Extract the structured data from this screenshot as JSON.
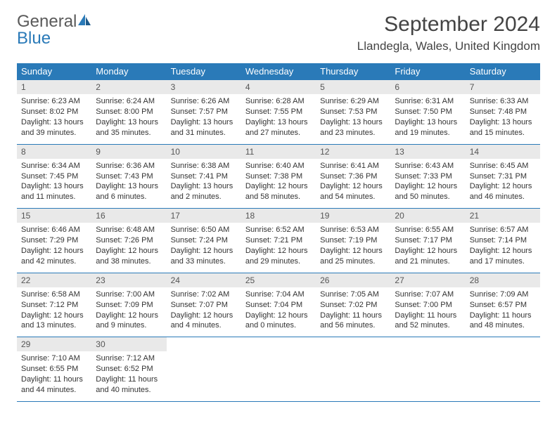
{
  "logo": {
    "general": "General",
    "blue": "Blue"
  },
  "title": "September 2024",
  "location": "Llandegla, Wales, United Kingdom",
  "colors": {
    "header_bg": "#2a7ab8",
    "header_text": "#ffffff",
    "daynum_bg": "#e9e9e9",
    "border": "#2a7ab8",
    "body_text": "#333333",
    "logo_gray": "#5a5a5a",
    "logo_blue": "#2a7ab8"
  },
  "weekdays": [
    "Sunday",
    "Monday",
    "Tuesday",
    "Wednesday",
    "Thursday",
    "Friday",
    "Saturday"
  ],
  "weeks": [
    [
      {
        "n": "1",
        "sr": "Sunrise: 6:23 AM",
        "ss": "Sunset: 8:02 PM",
        "d1": "Daylight: 13 hours",
        "d2": "and 39 minutes."
      },
      {
        "n": "2",
        "sr": "Sunrise: 6:24 AM",
        "ss": "Sunset: 8:00 PM",
        "d1": "Daylight: 13 hours",
        "d2": "and 35 minutes."
      },
      {
        "n": "3",
        "sr": "Sunrise: 6:26 AM",
        "ss": "Sunset: 7:57 PM",
        "d1": "Daylight: 13 hours",
        "d2": "and 31 minutes."
      },
      {
        "n": "4",
        "sr": "Sunrise: 6:28 AM",
        "ss": "Sunset: 7:55 PM",
        "d1": "Daylight: 13 hours",
        "d2": "and 27 minutes."
      },
      {
        "n": "5",
        "sr": "Sunrise: 6:29 AM",
        "ss": "Sunset: 7:53 PM",
        "d1": "Daylight: 13 hours",
        "d2": "and 23 minutes."
      },
      {
        "n": "6",
        "sr": "Sunrise: 6:31 AM",
        "ss": "Sunset: 7:50 PM",
        "d1": "Daylight: 13 hours",
        "d2": "and 19 minutes."
      },
      {
        "n": "7",
        "sr": "Sunrise: 6:33 AM",
        "ss": "Sunset: 7:48 PM",
        "d1": "Daylight: 13 hours",
        "d2": "and 15 minutes."
      }
    ],
    [
      {
        "n": "8",
        "sr": "Sunrise: 6:34 AM",
        "ss": "Sunset: 7:45 PM",
        "d1": "Daylight: 13 hours",
        "d2": "and 11 minutes."
      },
      {
        "n": "9",
        "sr": "Sunrise: 6:36 AM",
        "ss": "Sunset: 7:43 PM",
        "d1": "Daylight: 13 hours",
        "d2": "and 6 minutes."
      },
      {
        "n": "10",
        "sr": "Sunrise: 6:38 AM",
        "ss": "Sunset: 7:41 PM",
        "d1": "Daylight: 13 hours",
        "d2": "and 2 minutes."
      },
      {
        "n": "11",
        "sr": "Sunrise: 6:40 AM",
        "ss": "Sunset: 7:38 PM",
        "d1": "Daylight: 12 hours",
        "d2": "and 58 minutes."
      },
      {
        "n": "12",
        "sr": "Sunrise: 6:41 AM",
        "ss": "Sunset: 7:36 PM",
        "d1": "Daylight: 12 hours",
        "d2": "and 54 minutes."
      },
      {
        "n": "13",
        "sr": "Sunrise: 6:43 AM",
        "ss": "Sunset: 7:33 PM",
        "d1": "Daylight: 12 hours",
        "d2": "and 50 minutes."
      },
      {
        "n": "14",
        "sr": "Sunrise: 6:45 AM",
        "ss": "Sunset: 7:31 PM",
        "d1": "Daylight: 12 hours",
        "d2": "and 46 minutes."
      }
    ],
    [
      {
        "n": "15",
        "sr": "Sunrise: 6:46 AM",
        "ss": "Sunset: 7:29 PM",
        "d1": "Daylight: 12 hours",
        "d2": "and 42 minutes."
      },
      {
        "n": "16",
        "sr": "Sunrise: 6:48 AM",
        "ss": "Sunset: 7:26 PM",
        "d1": "Daylight: 12 hours",
        "d2": "and 38 minutes."
      },
      {
        "n": "17",
        "sr": "Sunrise: 6:50 AM",
        "ss": "Sunset: 7:24 PM",
        "d1": "Daylight: 12 hours",
        "d2": "and 33 minutes."
      },
      {
        "n": "18",
        "sr": "Sunrise: 6:52 AM",
        "ss": "Sunset: 7:21 PM",
        "d1": "Daylight: 12 hours",
        "d2": "and 29 minutes."
      },
      {
        "n": "19",
        "sr": "Sunrise: 6:53 AM",
        "ss": "Sunset: 7:19 PM",
        "d1": "Daylight: 12 hours",
        "d2": "and 25 minutes."
      },
      {
        "n": "20",
        "sr": "Sunrise: 6:55 AM",
        "ss": "Sunset: 7:17 PM",
        "d1": "Daylight: 12 hours",
        "d2": "and 21 minutes."
      },
      {
        "n": "21",
        "sr": "Sunrise: 6:57 AM",
        "ss": "Sunset: 7:14 PM",
        "d1": "Daylight: 12 hours",
        "d2": "and 17 minutes."
      }
    ],
    [
      {
        "n": "22",
        "sr": "Sunrise: 6:58 AM",
        "ss": "Sunset: 7:12 PM",
        "d1": "Daylight: 12 hours",
        "d2": "and 13 minutes."
      },
      {
        "n": "23",
        "sr": "Sunrise: 7:00 AM",
        "ss": "Sunset: 7:09 PM",
        "d1": "Daylight: 12 hours",
        "d2": "and 9 minutes."
      },
      {
        "n": "24",
        "sr": "Sunrise: 7:02 AM",
        "ss": "Sunset: 7:07 PM",
        "d1": "Daylight: 12 hours",
        "d2": "and 4 minutes."
      },
      {
        "n": "25",
        "sr": "Sunrise: 7:04 AM",
        "ss": "Sunset: 7:04 PM",
        "d1": "Daylight: 12 hours",
        "d2": "and 0 minutes."
      },
      {
        "n": "26",
        "sr": "Sunrise: 7:05 AM",
        "ss": "Sunset: 7:02 PM",
        "d1": "Daylight: 11 hours",
        "d2": "and 56 minutes."
      },
      {
        "n": "27",
        "sr": "Sunrise: 7:07 AM",
        "ss": "Sunset: 7:00 PM",
        "d1": "Daylight: 11 hours",
        "d2": "and 52 minutes."
      },
      {
        "n": "28",
        "sr": "Sunrise: 7:09 AM",
        "ss": "Sunset: 6:57 PM",
        "d1": "Daylight: 11 hours",
        "d2": "and 48 minutes."
      }
    ],
    [
      {
        "n": "29",
        "sr": "Sunrise: 7:10 AM",
        "ss": "Sunset: 6:55 PM",
        "d1": "Daylight: 11 hours",
        "d2": "and 44 minutes."
      },
      {
        "n": "30",
        "sr": "Sunrise: 7:12 AM",
        "ss": "Sunset: 6:52 PM",
        "d1": "Daylight: 11 hours",
        "d2": "and 40 minutes."
      },
      {
        "empty": true
      },
      {
        "empty": true
      },
      {
        "empty": true
      },
      {
        "empty": true
      },
      {
        "empty": true
      }
    ]
  ]
}
